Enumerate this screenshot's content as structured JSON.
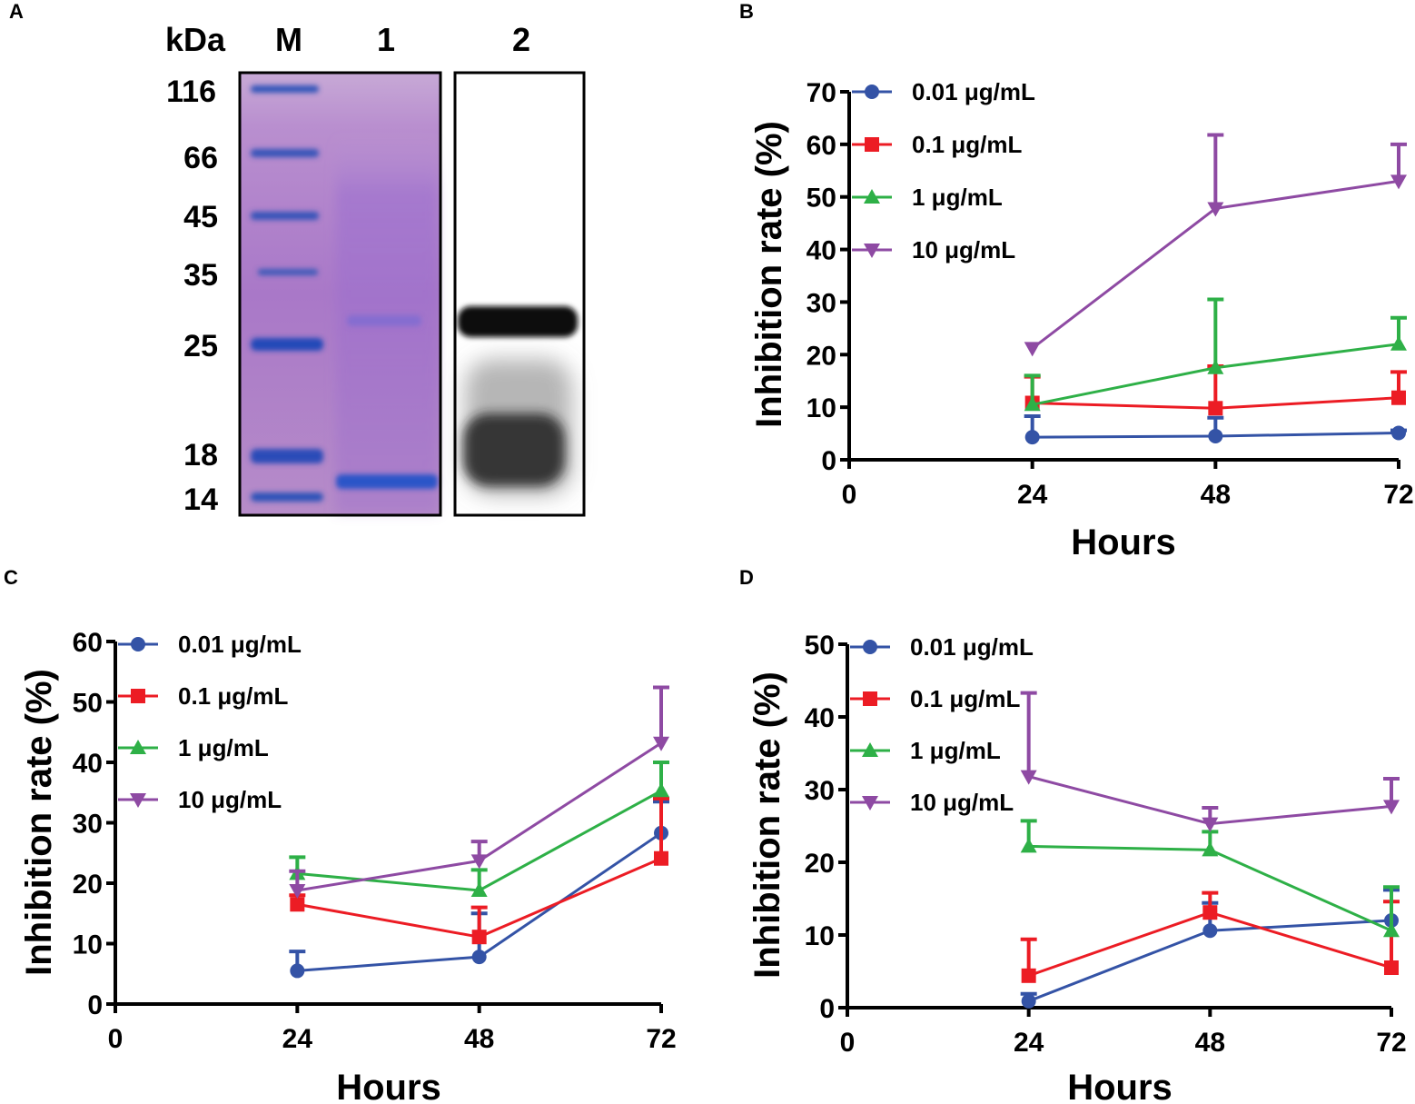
{
  "colors": {
    "series": [
      "#3453a6",
      "#ec1c24",
      "#2eb047",
      "#8e4aa3"
    ],
    "axis": "#000000"
  },
  "panel_labels": [
    "A",
    "B",
    "C",
    "D"
  ],
  "gel": {
    "unit_label": "kDa",
    "lane_labels": [
      "M",
      "1",
      "2"
    ],
    "marker_labels": [
      "116",
      "66",
      "45",
      "35",
      "25",
      "18",
      "14"
    ]
  },
  "chart_data": [
    {
      "panel": "B",
      "type": "line",
      "xlabel": "Hours",
      "ylabel": "Inhibition rate (%)",
      "xlim": [
        0,
        72
      ],
      "ylim": [
        0,
        70
      ],
      "xticks": [
        "0",
        "24",
        "48",
        "72"
      ],
      "yticks": [
        "0",
        "10",
        "20",
        "30",
        "40",
        "50",
        "60",
        "70"
      ],
      "x": [
        24,
        48,
        72
      ],
      "series": [
        {
          "name": "0.01 μg/mL",
          "marker": "circle",
          "values": [
            4.3,
            4.5,
            5.1
          ],
          "errors": [
            4.0,
            3.5,
            0.5
          ]
        },
        {
          "name": "0.1 μg/mL",
          "marker": "square",
          "values": [
            10.8,
            9.8,
            11.8
          ],
          "errors": [
            5.0,
            8.0,
            4.9
          ]
        },
        {
          "name": "1 μg/mL",
          "marker": "triangle-up",
          "values": [
            10.5,
            17.5,
            22.0
          ],
          "errors": [
            5.5,
            13.0,
            5.0
          ]
        },
        {
          "name": "10 μg/mL",
          "marker": "triangle-down",
          "values": [
            21.2,
            47.8,
            53.0
          ],
          "errors": [
            0.0,
            14.0,
            7.0
          ]
        }
      ]
    },
    {
      "panel": "C",
      "type": "line",
      "xlabel": "Hours",
      "ylabel": "Inhibition rate (%)",
      "xlim": [
        0,
        72
      ],
      "ylim": [
        0,
        60
      ],
      "xticks": [
        "0",
        "24",
        "48",
        "72"
      ],
      "yticks": [
        "0",
        "10",
        "20",
        "30",
        "40",
        "50",
        "60"
      ],
      "x": [
        24,
        48,
        72
      ],
      "series": [
        {
          "name": "0.01 μg/mL",
          "marker": "circle",
          "values": [
            5.5,
            7.8,
            28.3
          ],
          "errors": [
            3.2,
            7.2,
            5.2
          ]
        },
        {
          "name": "0.1 μg/mL",
          "marker": "square",
          "values": [
            16.5,
            11.1,
            24.1
          ],
          "errors": [
            1.5,
            4.9,
            9.9
          ]
        },
        {
          "name": "1 μg/mL",
          "marker": "triangle-up",
          "values": [
            21.6,
            18.8,
            35.3
          ],
          "errors": [
            2.7,
            3.4,
            4.7
          ]
        },
        {
          "name": "10 μg/mL",
          "marker": "triangle-down",
          "values": [
            18.8,
            23.7,
            43.2
          ],
          "errors": [
            3.2,
            3.2,
            9.2
          ]
        }
      ]
    },
    {
      "panel": "D",
      "type": "line",
      "xlabel": "Hours",
      "ylabel": "Inhibition rate (%)",
      "xlim": [
        0,
        72
      ],
      "ylim": [
        0,
        50
      ],
      "xticks": [
        "0",
        "24",
        "48",
        "72"
      ],
      "yticks": [
        "0",
        "10",
        "20",
        "30",
        "40",
        "50"
      ],
      "x": [
        24,
        48,
        72
      ],
      "series": [
        {
          "name": "0.01 μg/mL",
          "marker": "circle",
          "values": [
            0.9,
            10.6,
            12.0
          ],
          "errors": [
            1.0,
            3.8,
            4.2
          ]
        },
        {
          "name": "0.1 μg/mL",
          "marker": "square",
          "values": [
            4.4,
            13.1,
            5.5
          ],
          "errors": [
            5.0,
            2.7,
            9.1
          ]
        },
        {
          "name": "1 μg/mL",
          "marker": "triangle-up",
          "values": [
            22.2,
            21.7,
            10.6
          ],
          "errors": [
            3.5,
            2.5,
            6.0
          ]
        },
        {
          "name": "10 μg/mL",
          "marker": "triangle-down",
          "values": [
            31.8,
            25.3,
            27.7
          ],
          "errors": [
            11.5,
            2.2,
            3.8
          ]
        }
      ]
    }
  ]
}
